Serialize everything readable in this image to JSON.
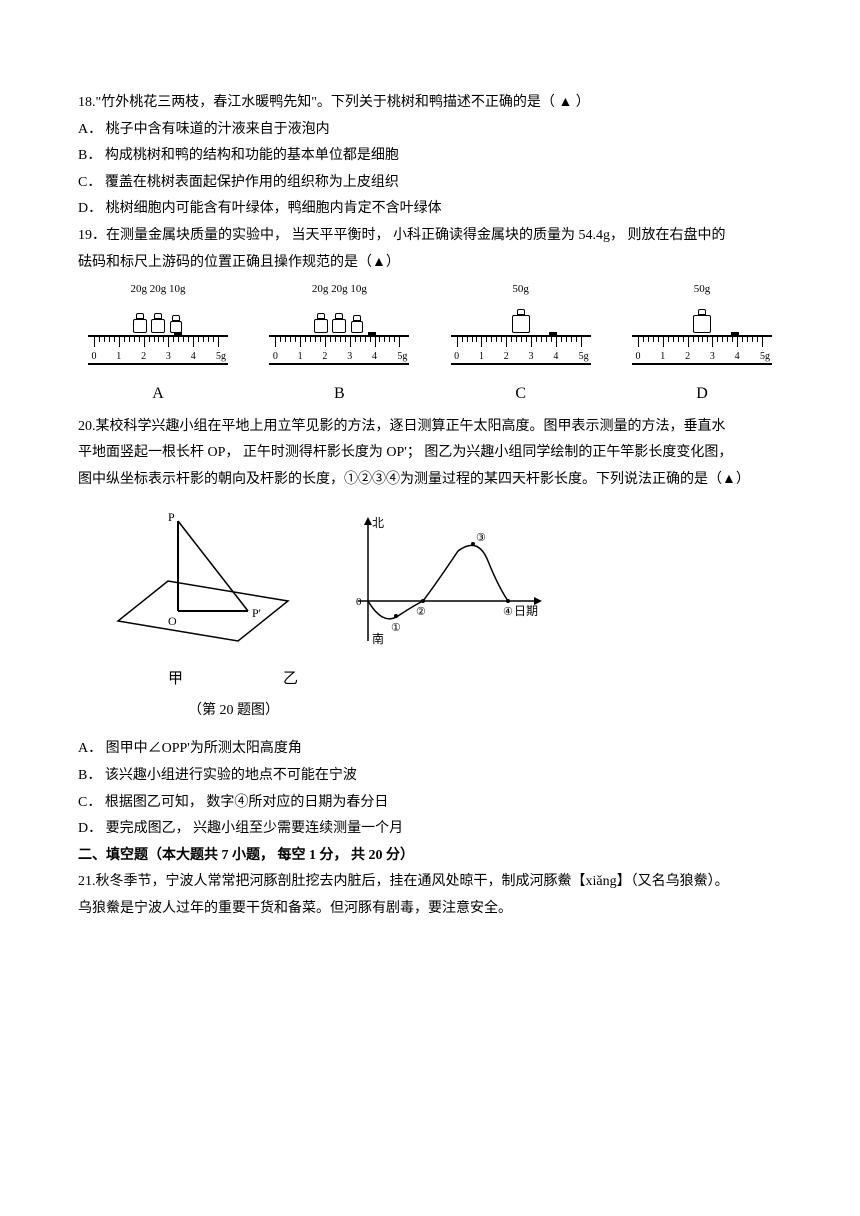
{
  "q18": {
    "stem_pre": "18.\"竹外桃花三两枝，春江水暖鸭先知\"。下列关于桃树和鸭描述不正确的是（",
    "blank": "▲",
    "stem_post": "）",
    "optA": "A．  桃子中含有味道的汁液来自于液泡内",
    "optB": "B．  构成桃树和鸭的结构和功能的基本单位都是细胞",
    "optC": "C．  覆盖在桃树表面起保护作用的组织称为上皮组织",
    "optD": "D．  桃树细胞内可能含有叶绿体，鸭细胞内肯定不含叶绿体"
  },
  "q19": {
    "line1": "19．在测量金属块质量的实验中， 当天平平衡时， 小科正确读得金属块的质量为 54.4g， 则放在右盘中的",
    "line2": "砝码和标尺上游码的位置正确且操作规范的是（▲）",
    "balances": [
      {
        "letter": "A",
        "weights": [
          "20g",
          "20g",
          "10g"
        ],
        "rider_pct": 68,
        "tick_nums": [
          "0",
          "1",
          "2",
          "3",
          "4"
        ],
        "unit": "5g"
      },
      {
        "letter": "B",
        "weights": [
          "20g",
          "20g",
          "10g"
        ],
        "rider_pct": 78,
        "tick_nums": [
          "0",
          "1",
          "2",
          "3",
          "4"
        ],
        "unit": "5g"
      },
      {
        "letter": "C",
        "weights": [
          "50g"
        ],
        "rider_pct": 78,
        "tick_nums": [
          "0",
          "1",
          "2",
          "3",
          "4"
        ],
        "unit": "5g"
      },
      {
        "letter": "D",
        "weights": [
          "50g"
        ],
        "rider_pct": 78,
        "tick_nums": [
          "0",
          "1",
          "2",
          "3",
          "4"
        ],
        "unit": "5g"
      }
    ]
  },
  "q20": {
    "line1": "20.某校科学兴趣小组在平地上用立竿见影的方法，逐日测算正午太阳高度。图甲表示测量的方法，垂直水",
    "line2": "平地面竖起一根长杆 OP， 正午时测得杆影长度为 OP'； 图乙为兴趣小组同学绘制的正午竿影长度变化图，",
    "line3": "图中纵坐标表示杆影的朝向及杆影的长度，①②③④为测量过程的某四天杆影长度。下列说法正确的是（▲）",
    "figJiaLabel": "甲",
    "figYiLabel": "乙",
    "caption": "（第 20 题图）",
    "optA": "A．  图甲中∠OPP'为所测太阳高度角",
    "optB": "B．  该兴趣小组进行实验的地点不可能在宁波",
    "optC": "C．  根据图乙可知， 数字④所对应的日期为春分日",
    "optD": "D．  要完成图乙， 兴趣小组至少需要连续测量一个月",
    "yAxis": {
      "top": "北",
      "bottom": "南"
    },
    "xAxis": "日期",
    "points": [
      "①",
      "②",
      "③",
      "④"
    ]
  },
  "section2": {
    "title": "二、填空题（本大题共 7 小题， 每空 1 分， 共 20 分）"
  },
  "q21": {
    "line1": "21.秋冬季节，宁波人常常把河豚剖肚挖去内脏后，挂在通风处晾干，制成河豚鮝【xiǎng】（又名乌狼鮝）。",
    "line2": "乌狼鮝是宁波人过年的重要干货和备菜。但河豚有剧毒，要注意安全。"
  },
  "colors": {
    "text": "#000000",
    "bg": "#ffffff"
  }
}
